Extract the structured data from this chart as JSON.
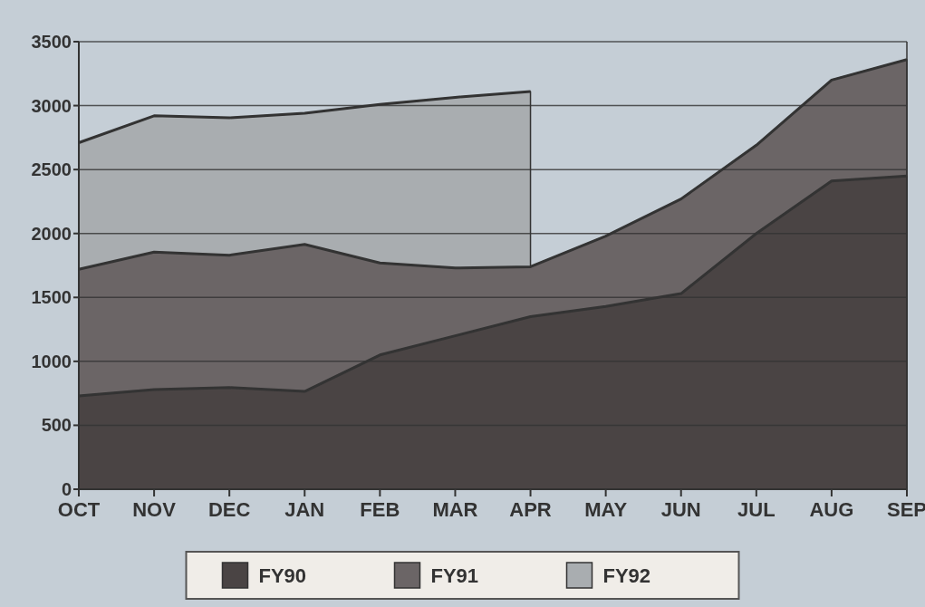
{
  "chart_data": {
    "type": "area",
    "categories": [
      "OCT",
      "NOV",
      "DEC",
      "JAN",
      "FEB",
      "MAR",
      "APR",
      "MAY",
      "JUN",
      "JUL",
      "AUG",
      "SEP"
    ],
    "series": [
      {
        "name": "FY90",
        "color": "#4a4444",
        "values": [
          730,
          780,
          795,
          765,
          1050,
          1200,
          1350,
          1430,
          1530,
          2000,
          2410,
          2450
        ]
      },
      {
        "name": "FY91",
        "color": "#6b6566",
        "values": [
          1720,
          1855,
          1830,
          1915,
          1770,
          1730,
          1740,
          1980,
          2270,
          2690,
          3200,
          3360
        ]
      },
      {
        "name": "FY92",
        "color": "#a9adb0",
        "values": [
          2710,
          2920,
          2905,
          2940,
          3010,
          3065,
          3110,
          null,
          null,
          null,
          null,
          null
        ]
      }
    ],
    "ylim": [
      0,
      3500
    ],
    "yticks": [
      0,
      500,
      1000,
      1500,
      2000,
      2500,
      3000,
      3500
    ],
    "grid": "y",
    "legend": "bottom"
  }
}
